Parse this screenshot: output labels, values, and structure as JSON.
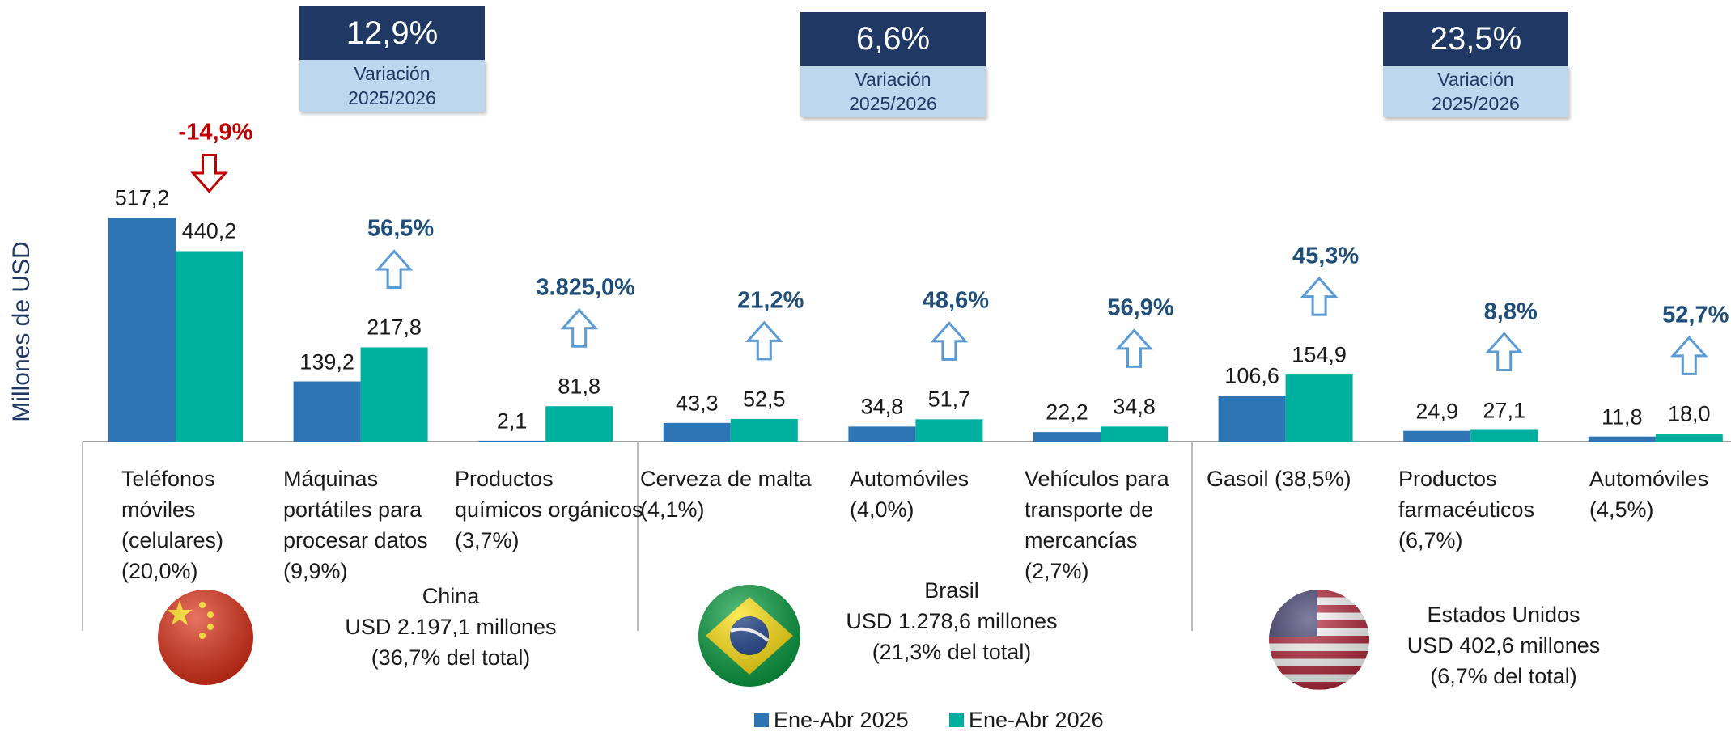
{
  "chart_data": {
    "type": "bar",
    "y_label": "Millones de USD",
    "categories": [
      "Teléfonos móviles (celulares) (20,0%)",
      "Máquinas portátiles para procesar datos (9,9%)",
      "Productos químicos orgánicos (3,7%)",
      "Cerveza de malta (4,1%)",
      "Automóviles (4,0%)",
      "Vehículos para transporte de mercancías (2,7%)",
      "Gasoil (38,5%)",
      "Productos farmacéuticos (6,7%)",
      "Automóviles (4,5%)"
    ],
    "series": [
      {
        "name": "Ene-Abr 2025",
        "color": "#2e75b6",
        "values": [
          517.2,
          139.2,
          2.1,
          43.3,
          34.8,
          22.2,
          106.6,
          24.9,
          11.8
        ],
        "value_labels": [
          "517,2",
          "139,2",
          "2,1",
          "43,3",
          "34,8",
          "22,2",
          "106,6",
          "24,9",
          "11,8"
        ]
      },
      {
        "name": "Ene-Abr 2026",
        "color": "#00b09f",
        "values": [
          440.2,
          217.8,
          81.8,
          52.5,
          51.7,
          34.8,
          154.9,
          27.1,
          18.0
        ],
        "value_labels": [
          "440,2",
          "217,8",
          "81,8",
          "52,5",
          "51,7",
          "34,8",
          "154,9",
          "27,1",
          "18,0"
        ]
      }
    ],
    "changes": [
      {
        "value": -14.9,
        "label": "-14,9%"
      },
      {
        "value": 56.5,
        "label": "56,5%"
      },
      {
        "value": 3825.0,
        "label": "3.825,0%"
      },
      {
        "value": 21.2,
        "label": "21,2%"
      },
      {
        "value": 48.6,
        "label": "48,6%"
      },
      {
        "value": 56.9,
        "label": "56,9%"
      },
      {
        "value": 45.3,
        "label": "45,3%"
      },
      {
        "value": 8.8,
        "label": "8,8%"
      },
      {
        "value": 52.7,
        "label": "52,7%"
      }
    ],
    "variation_caption": "Variación 2025/2026",
    "groups": [
      {
        "name": "China",
        "total": "USD 2.197,1 millones",
        "share": "(36,7% del total)",
        "variation": "12,9%"
      },
      {
        "name": "Brasil",
        "total": "USD 1.278,6 millones",
        "share": "(21,3% del total)",
        "variation": "6,6%"
      },
      {
        "name": "Estados Unidos",
        "total": "USD 402,6 millones",
        "share": "(6,7% del total)",
        "variation": "23,5%"
      }
    ],
    "ylim": [
      0,
      600
    ]
  }
}
